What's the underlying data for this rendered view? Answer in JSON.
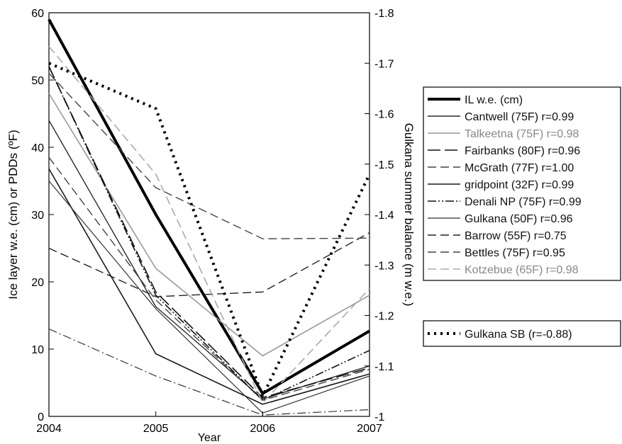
{
  "chart_data": {
    "type": "line",
    "x": [
      2004,
      2005,
      2006,
      2007
    ],
    "xlabel": "Year",
    "ylabel": "Ice layer w.e. (cm) or PDDs (ºF)",
    "y2label": "Gulkana summer balance (m w.e.)",
    "xlim": [
      2004,
      2007
    ],
    "ylim": [
      0,
      60
    ],
    "y2lim": [
      -1.0,
      -1.8
    ],
    "xticks": [
      "2004",
      "2005",
      "2006",
      "2007"
    ],
    "yticks": [
      "0",
      "10",
      "20",
      "30",
      "40",
      "50",
      "60"
    ],
    "y2ticks": [
      "-1",
      "-1.1",
      "-1.2",
      "-1.3",
      "-1.4",
      "-1.5",
      "-1.6",
      "-1.7",
      "-1.8"
    ],
    "grid": false,
    "legend_position": "right",
    "series": [
      {
        "name": "IL w.e. (cm)",
        "axis": "left",
        "values": [
          59,
          30,
          3.4,
          12.7
        ],
        "color": "#000000",
        "dash": "solid",
        "width": 4
      },
      {
        "name": "Cantwell (75F) r=0.99",
        "axis": "left",
        "values": [
          44,
          16.3,
          2.6,
          7.5
        ],
        "color": "#2a2a2a",
        "dash": "solid",
        "width": 1.4
      },
      {
        "name": "Talkeetna (75F) r=0.98",
        "axis": "left",
        "values": [
          48,
          22,
          9,
          18
        ],
        "color": "#999999",
        "dash": "solid",
        "width": 1.6
      },
      {
        "name": "Fairbanks (80F) r=0.96",
        "axis": "left",
        "values": [
          52,
          18.5,
          2.8,
          7.2
        ],
        "color": "#111111",
        "dash": "longdash",
        "width": 1.6
      },
      {
        "name": "McGrath (77F)  r=1.00",
        "axis": "left",
        "values": [
          38.5,
          17.3,
          2.4,
          7
        ],
        "color": "#444444",
        "dash": "dash",
        "width": 1.4
      },
      {
        "name": "gridpoint (32F) r=0.99",
        "axis": "left",
        "values": [
          36.8,
          9.3,
          1.8,
          6.3
        ],
        "color": "#1a1a1a",
        "dash": "solid",
        "width": 1.6
      },
      {
        "name": "Denali NP (75F) r=0.99",
        "axis": "left",
        "values": [
          52,
          18,
          2.4,
          9.8
        ],
        "color": "#111111",
        "dash": "dashdotdot",
        "width": 1.6
      },
      {
        "name": "Gulkana (50F) r=0.96",
        "axis": "left",
        "values": [
          35,
          16,
          0.5,
          6
        ],
        "color": "#333333",
        "dash": "solid",
        "width": 1.2
      },
      {
        "name": "Barrow (55F) r=0.75",
        "axis": "left",
        "values": [
          25,
          17.8,
          18.5,
          27.3
        ],
        "color": "#222222",
        "dash": "dash",
        "width": 1.4
      },
      {
        "name": "Bettles (75F) r=0.95",
        "axis": "left",
        "values": [
          51,
          34,
          26.4,
          26.5
        ],
        "color": "#444444",
        "dash": "dash",
        "width": 1.4
      },
      {
        "name": "Kotzebue (65F) r=0.98",
        "axis": "left",
        "values": [
          55,
          36,
          2,
          19
        ],
        "color": "#aaaaaa",
        "dash": "dash",
        "width": 1.6
      },
      {
        "name": "",
        "axis": "left",
        "values": [
          13,
          6,
          0.2,
          1
        ],
        "color": "#333333",
        "dash": "dashdot",
        "width": 1.2
      },
      {
        "name": "Gulkana SB (r=-0.88)",
        "axis": "right",
        "values": [
          -1.7,
          -1.61,
          -1.04,
          -1.48
        ],
        "color": "#000000",
        "dash": "dot",
        "width": 4
      }
    ]
  }
}
